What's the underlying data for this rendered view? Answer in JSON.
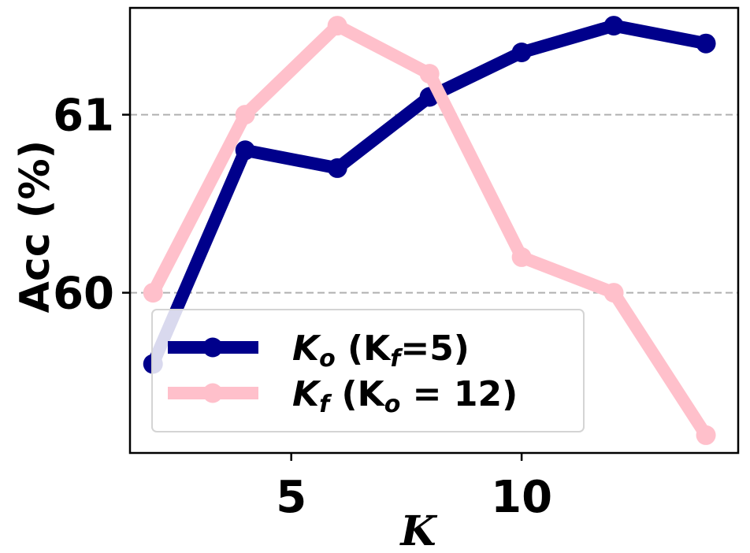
{
  "chart_data": {
    "type": "line",
    "xlabel": "K",
    "ylabel": "Acc (%)",
    "xlim": [
      1.5,
      14.7
    ],
    "ylim": [
      59.1,
      61.6
    ],
    "xticks": [
      5,
      10
    ],
    "yticks": [
      60,
      61
    ],
    "grid": "horizontal-dashed",
    "legend_position": "lower-left",
    "series": [
      {
        "name": "K_o (K_f=5)",
        "legend": {
          "main1": "K",
          "sub1": "o",
          "mid": " (K",
          "sub2": "f",
          "end": "=5)"
        },
        "color": "#00008b",
        "x": [
          2,
          4,
          6,
          8,
          10,
          12,
          14
        ],
        "y": [
          59.6,
          60.8,
          60.7,
          61.1,
          61.35,
          61.5,
          61.4
        ]
      },
      {
        "name": "K_f (K_o = 12)",
        "legend": {
          "main1": "K",
          "sub1": "f",
          "mid": " (K",
          "sub2": "o",
          "end": " = 12)"
        },
        "color": "#ffc0cb",
        "x": [
          2,
          4,
          6,
          8,
          10,
          12,
          14
        ],
        "y": [
          60.0,
          61.0,
          61.5,
          61.23,
          60.2,
          60.0,
          59.2
        ]
      }
    ]
  }
}
